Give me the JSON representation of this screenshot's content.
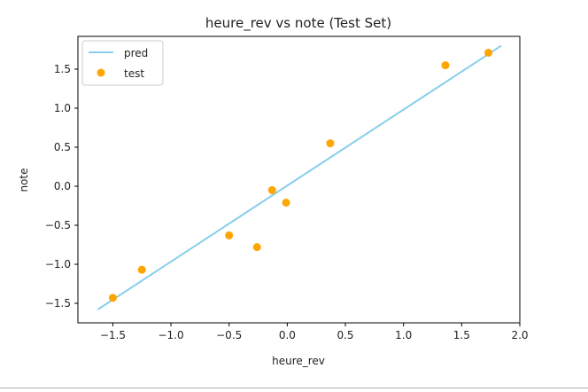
{
  "chart_data": {
    "type": "scatter",
    "title": "heure_rev vs note (Test Set)",
    "xlabel": "heure_rev",
    "ylabel": "note",
    "xlim": [
      -1.8,
      2.0
    ],
    "ylim": [
      -1.75,
      1.92
    ],
    "xticks": [
      -1.5,
      -1.0,
      -0.5,
      0.0,
      0.5,
      1.0,
      1.5,
      2.0
    ],
    "xtick_labels": [
      "−1.5",
      "−1.0",
      "−0.5",
      "0.0",
      "0.5",
      "1.0",
      "1.5",
      "2.0"
    ],
    "yticks": [
      -1.5,
      -1.0,
      -0.5,
      0.0,
      0.5,
      1.0,
      1.5
    ],
    "ytick_labels": [
      "−1.5",
      "−1.0",
      "−0.5",
      "0.0",
      "0.5",
      "1.0",
      "1.5"
    ],
    "grid": false,
    "legend_position": "top-left",
    "series": [
      {
        "name": "pred",
        "kind": "line",
        "color": "#87ceeb",
        "x": [
          -1.63,
          1.84
        ],
        "y": [
          -1.58,
          1.8
        ]
      },
      {
        "name": "test",
        "kind": "scatter",
        "color": "#ffa500",
        "x": [
          -1.5,
          -1.25,
          -0.5,
          -0.26,
          -0.13,
          -0.01,
          0.37,
          1.36,
          1.73
        ],
        "y": [
          -1.43,
          -1.07,
          -0.63,
          -0.78,
          -0.05,
          -0.21,
          0.55,
          1.55,
          1.71
        ]
      }
    ]
  }
}
